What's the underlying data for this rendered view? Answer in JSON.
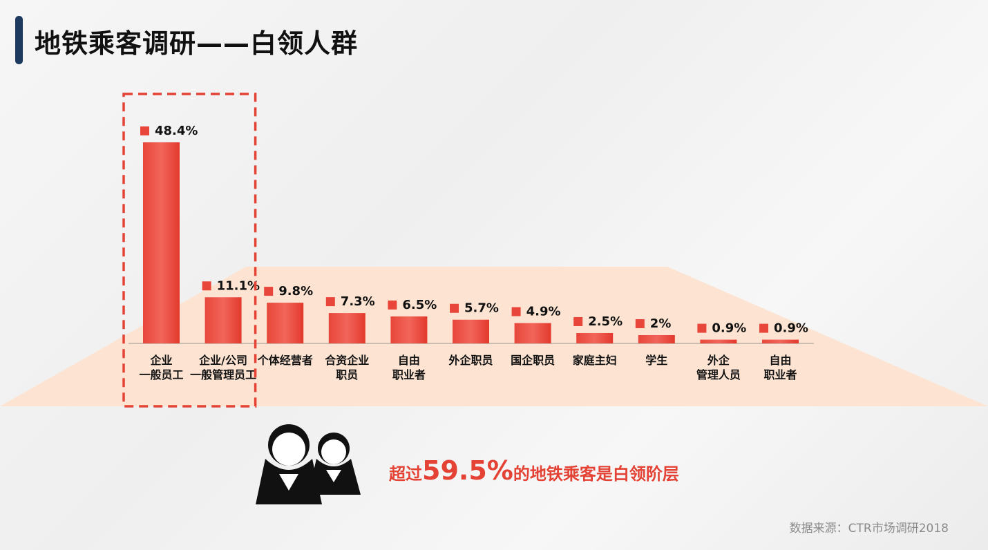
{
  "header": {
    "title": "地铁乘客调研——白领人群"
  },
  "chart_data": {
    "type": "bar",
    "title": "",
    "xlabel": "",
    "ylabel": "",
    "ylim": [
      0,
      55
    ],
    "categories": [
      [
        "企业",
        "一般员工"
      ],
      [
        "企业/公司",
        "一般管理员工"
      ],
      [
        "个体经营者"
      ],
      [
        "合资企业",
        "职员"
      ],
      [
        "自由",
        "职业者"
      ],
      [
        "外企职员"
      ],
      [
        "国企职员"
      ],
      [
        "家庭主妇"
      ],
      [
        "学生"
      ],
      [
        "外企",
        "管理人员"
      ],
      [
        "自由",
        "职业者"
      ]
    ],
    "values": [
      48.4,
      11.1,
      9.8,
      7.3,
      6.5,
      5.7,
      4.9,
      2.5,
      2,
      0.9,
      0.9
    ],
    "value_labels": [
      "48.4%",
      "11.1%",
      "9.8%",
      "7.3%",
      "6.5%",
      "5.7%",
      "4.9%",
      "2.5%",
      "2%",
      "0.9%",
      "0.9%"
    ],
    "highlight_count": 2,
    "colors": {
      "bar": "#e8463a",
      "bar_light": "#f2655a",
      "base": "#fde4d2",
      "highlight": "#e34235"
    }
  },
  "callout": {
    "prefix": "超过",
    "value": "59.5%",
    "suffix": "的地铁乘客是白领阶层"
  },
  "icons": {
    "people": "two-people-icon"
  },
  "footer": {
    "source": "数据来源：CTR市场调研2018"
  }
}
